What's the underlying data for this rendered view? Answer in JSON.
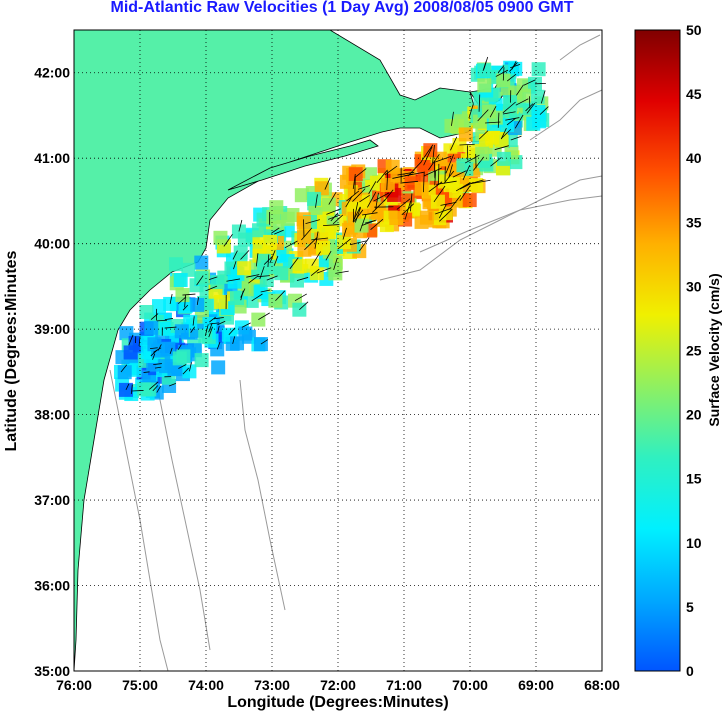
{
  "title": "Mid-Atlantic Raw Velocities (1 Day Avg) 2008/08/05 0900 GMT",
  "map": {
    "xlabel": "Longitude (Degrees:Minutes)",
    "ylabel": "Latitude (Degrees:Minutes",
    "x_ticks": [
      "76:00",
      "75:00",
      "74:00",
      "73:00",
      "72:00",
      "71:00",
      "70:00",
      "69:00",
      "68:00"
    ],
    "y_ticks": [
      "42:00",
      "41:00",
      "40:00",
      "39:00",
      "38:00",
      "37:00",
      "36:00",
      "35:00"
    ],
    "lon_range": [
      -76,
      -68
    ],
    "lat_range": [
      35,
      42.5
    ],
    "grid": true,
    "land_color": "#55f0a8",
    "coast_color": "#808080"
  },
  "colorbar": {
    "label": "Surface Velocity (cm/s)",
    "ticks": [
      "0",
      "5",
      "10",
      "15",
      "20",
      "25",
      "30",
      "35",
      "40",
      "45",
      "50"
    ],
    "range": [
      0,
      50
    ],
    "colormap": [
      "#0055ff",
      "#00a8ff",
      "#00f0ff",
      "#30f0c0",
      "#90f060",
      "#f0f000",
      "#ffb000",
      "#ff5000",
      "#e00000",
      "#800000"
    ]
  }
}
